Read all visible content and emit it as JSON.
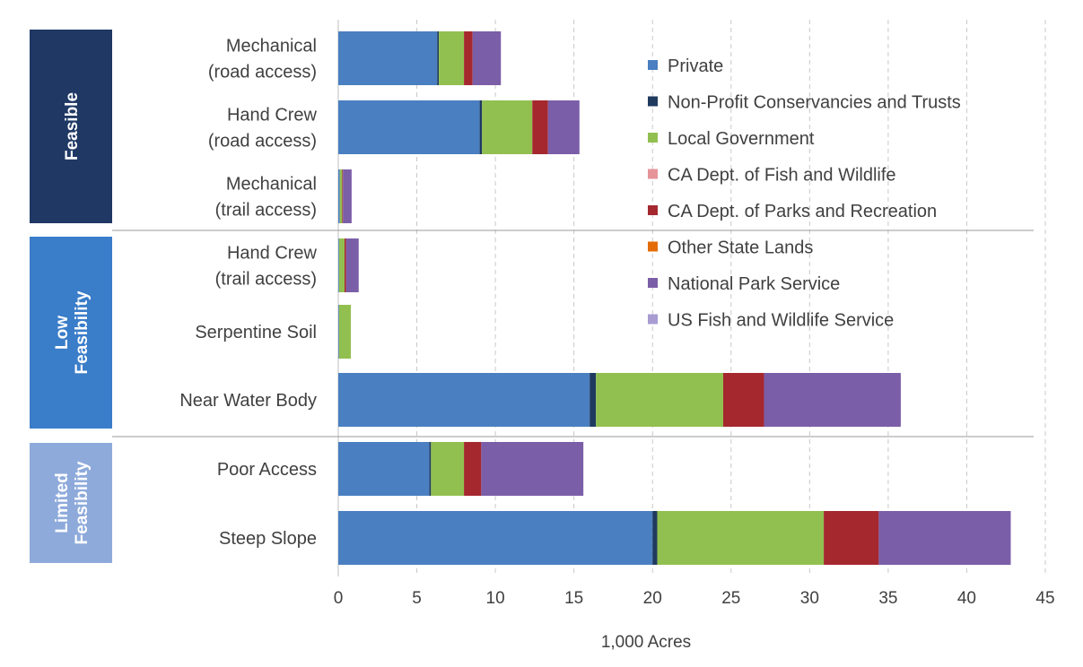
{
  "chart_data": {
    "type": "bar",
    "orientation": "horizontal",
    "stacked": true,
    "xlabel": "1,000 Acres",
    "xlim": [
      0,
      45
    ],
    "xticks": [
      0,
      5,
      10,
      15,
      20,
      25,
      30,
      35,
      40,
      45
    ],
    "grid": "vertical dashed",
    "legend_placement": "top-right",
    "groups": [
      {
        "label": "Feasible",
        "color": "#1f3864",
        "categories": [
          "Mechanical\n(road access)",
          "Hand Crew\n(road access)",
          "Mechanical\n(trail access)"
        ]
      },
      {
        "label": "Low\nFeasibility",
        "color": "#3a7dc9",
        "categories": [
          "Hand Crew\n(trail access)",
          "Serpentine Soil",
          "Near Water Body"
        ]
      },
      {
        "label": "Limited\nFeasibility",
        "color": "#8eaadb",
        "categories": [
          "Poor Access",
          "Steep Slope"
        ]
      }
    ],
    "categories": [
      "Mechanical\n(road access)",
      "Hand Crew\n(road access)",
      "Mechanical\n(trail access)",
      "Hand Crew\n(trail access)",
      "Serpentine Soil",
      "Near Water Body",
      "Poor Access",
      "Steep Slope"
    ],
    "series": [
      {
        "name": "Private",
        "color": "#4a7fc1",
        "values": [
          6.3,
          9.0,
          0.1,
          0.05,
          0.05,
          16.0,
          5.8,
          20.0
        ]
      },
      {
        "name": "Non-Profit Conservancies and Trusts",
        "color": "#1f3a5f",
        "values": [
          0.1,
          0.15,
          0.0,
          0.0,
          0.0,
          0.4,
          0.1,
          0.3
        ]
      },
      {
        "name": "Local Government",
        "color": "#92c050",
        "values": [
          1.6,
          3.2,
          0.15,
          0.35,
          0.75,
          8.1,
          2.1,
          10.6
        ]
      },
      {
        "name": "CA Dept. of Fish and Wildlife",
        "color": "#e6939a",
        "values": [
          0.0,
          0.0,
          0.0,
          0.0,
          0.0,
          0.0,
          0.0,
          0.0
        ]
      },
      {
        "name": "CA Dept. of Parks and Recreation",
        "color": "#a5282f",
        "values": [
          0.55,
          1.0,
          0.05,
          0.1,
          0.0,
          2.6,
          1.1,
          3.5
        ]
      },
      {
        "name": "Other State Lands",
        "color": "#e36c09",
        "values": [
          0.0,
          0.0,
          0.0,
          0.0,
          0.0,
          0.0,
          0.0,
          0.0
        ]
      },
      {
        "name": "National Park Service",
        "color": "#7b5ea8",
        "values": [
          1.8,
          2.0,
          0.55,
          0.8,
          0.0,
          8.7,
          6.5,
          8.4
        ]
      },
      {
        "name": "US Fish and Wildlife Service",
        "color": "#a89cd3",
        "values": [
          0.0,
          0.0,
          0.0,
          0.0,
          0.0,
          0.0,
          0.0,
          0.0
        ]
      }
    ]
  }
}
